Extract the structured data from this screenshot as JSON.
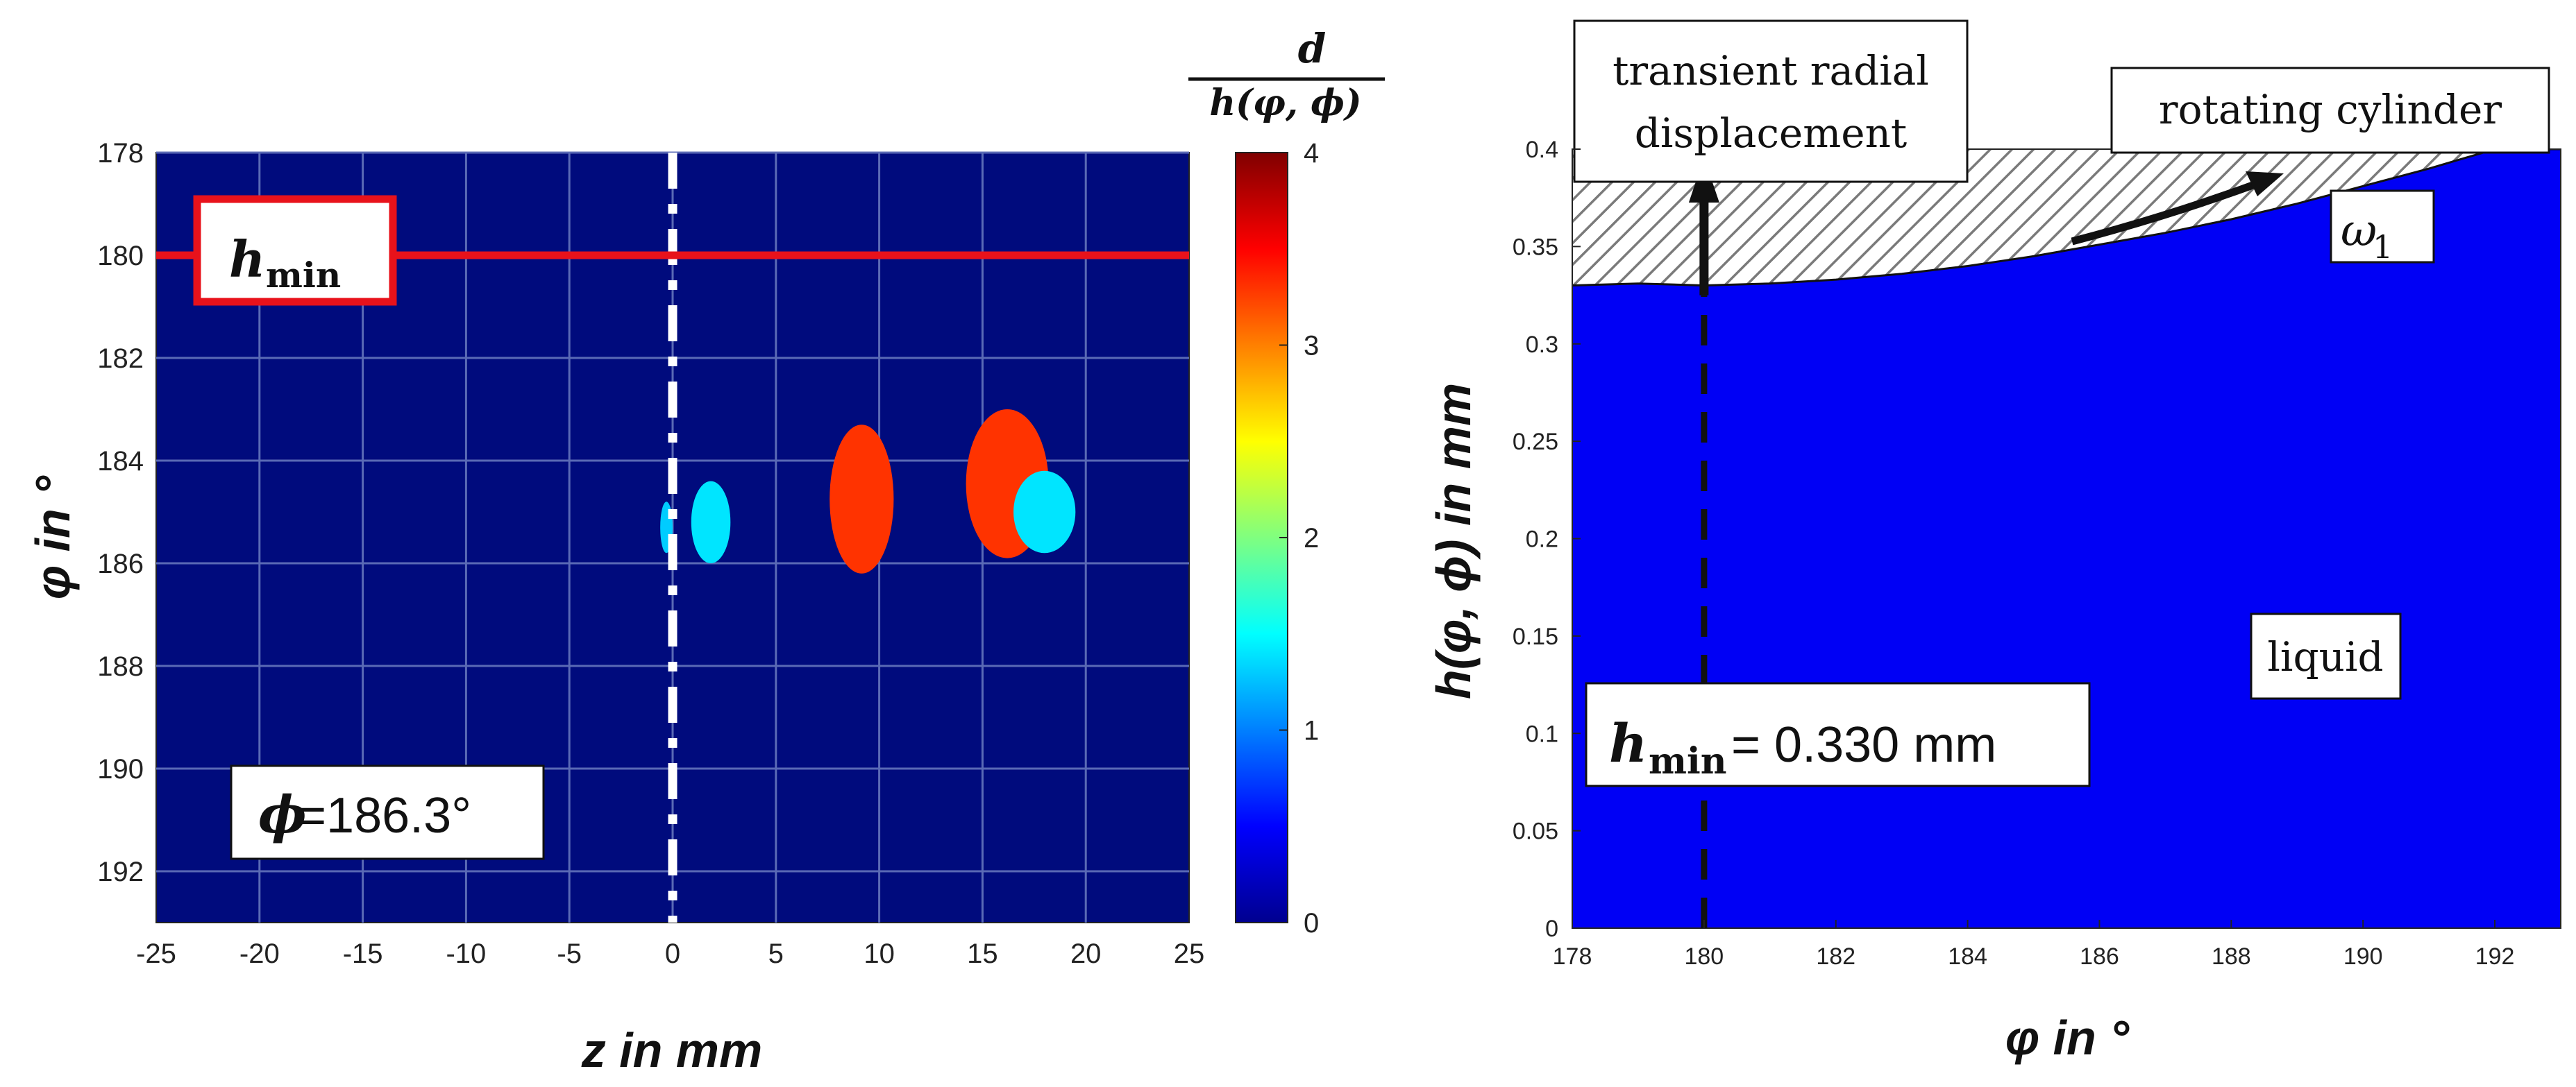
{
  "chart_data": [
    {
      "type": "heatmap",
      "xlabel": "z in mm",
      "ylabel": "φ in °",
      "xlim": [
        -25,
        25
      ],
      "ylim": [
        193,
        178
      ],
      "x_ticks": [
        "-25",
        "-20",
        "-15",
        "-10",
        "-5",
        "0",
        "5",
        "10",
        "15",
        "20",
        "25"
      ],
      "y_ticks": [
        "178",
        "180",
        "182",
        "184",
        "186",
        "188",
        "190",
        "192"
      ],
      "grid": true,
      "background_value": 0,
      "colorbar": {
        "label_numerator": "d",
        "label_denominator": "h(φ, ϕ)",
        "range": [
          0,
          4
        ],
        "ticks": [
          "0",
          "1",
          "2",
          "3",
          "4"
        ]
      },
      "hmin_line": {
        "phi": 180,
        "label_main": "h",
        "label_sub": "min"
      },
      "center_line": {
        "z": 0
      },
      "annotation": {
        "symbol": "ϕ",
        "text": "=186.3°"
      },
      "blobs": [
        {
          "z": [
            -0.6,
            0.0
          ],
          "phi": [
            184.8,
            185.8
          ],
          "value": 1.3
        },
        {
          "z": [
            0.9,
            2.8
          ],
          "phi": [
            184.4,
            186.0
          ],
          "value": 1.4
        },
        {
          "z": [
            7.6,
            10.7
          ],
          "phi": [
            183.3,
            186.2
          ],
          "value": 3.3
        },
        {
          "z": [
            14.2,
            18.2
          ],
          "phi": [
            183.0,
            185.9
          ],
          "value": 3.3
        },
        {
          "z": [
            16.5,
            19.5
          ],
          "phi": [
            184.2,
            185.8
          ],
          "value": 1.4
        }
      ]
    },
    {
      "type": "area",
      "xlabel": "φ in °",
      "ylabel": "h(φ, ϕ) in mm",
      "xlim": [
        178,
        193
      ],
      "ylim": [
        0,
        0.4
      ],
      "x_ticks": [
        "178",
        "180",
        "182",
        "184",
        "186",
        "188",
        "190",
        "192"
      ],
      "y_ticks": [
        "0",
        "0.05",
        "0.1",
        "0.15",
        "0.2",
        "0.25",
        "0.3",
        "0.35",
        "0.4"
      ],
      "grid": false,
      "series": [
        {
          "name": "liquid",
          "x": [
            178,
            179,
            180,
            181,
            182,
            183,
            184,
            185,
            186,
            187,
            188,
            189,
            190,
            191,
            192,
            193
          ],
          "y": [
            0.33,
            0.331,
            0.33,
            0.331,
            0.333,
            0.336,
            0.34,
            0.345,
            0.351,
            0.357,
            0.364,
            0.372,
            0.381,
            0.39,
            0.4,
            0.4
          ]
        }
      ],
      "annotations": {
        "transient_line1": "transient radial",
        "transient_line2": "displacement",
        "rotating": "rotating cylinder",
        "omega_main": "ω",
        "omega_sub": "1",
        "liquid": "liquid",
        "hmin_main": "h",
        "hmin_sub": "min",
        "hmin_value": "= 0.330 mm"
      },
      "hmin_marker_phi": 180
    }
  ],
  "colors": {
    "background": "#000b7d",
    "liquid": "#0000f5",
    "hmin_line": "#e8121b",
    "cyan": "#1ee3e8",
    "orange": "#ff6a00"
  }
}
